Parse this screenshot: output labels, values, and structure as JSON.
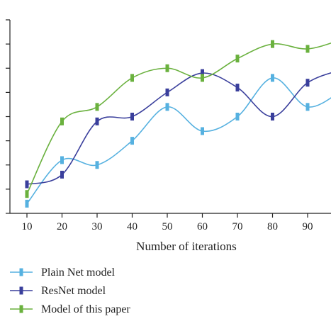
{
  "chart_data": {
    "type": "line",
    "title": "",
    "xlabel": "Number of iterations",
    "ylabel": "",
    "x": [
      10,
      20,
      30,
      40,
      50,
      60,
      70,
      80,
      90,
      100
    ],
    "xticks": [
      "10",
      "20",
      "30",
      "40",
      "50",
      "60",
      "70",
      "80",
      "90"
    ],
    "xlim": [
      7,
      97
    ],
    "yticks": [
      0,
      1,
      2,
      3,
      4,
      5,
      6,
      7,
      8
    ],
    "ylim": [
      0,
      8
    ],
    "grid": false,
    "legend_position": "bottom-left",
    "series": [
      {
        "name": "Plain Net model",
        "color": "#56b1e0",
        "values": [
          0.4,
          2.2,
          2.0,
          3.0,
          4.4,
          3.4,
          4.0,
          5.6,
          4.4,
          5.1
        ]
      },
      {
        "name": "ResNet model",
        "color": "#3a3f9c",
        "values": [
          1.2,
          1.6,
          3.8,
          4.0,
          5.0,
          5.8,
          5.2,
          4.0,
          5.4,
          5.95
        ]
      },
      {
        "name": "Model of this paper",
        "color": "#6ab13e",
        "values": [
          0.8,
          3.8,
          4.4,
          5.6,
          6.0,
          5.6,
          6.4,
          7.0,
          6.8,
          7.2
        ]
      }
    ]
  }
}
